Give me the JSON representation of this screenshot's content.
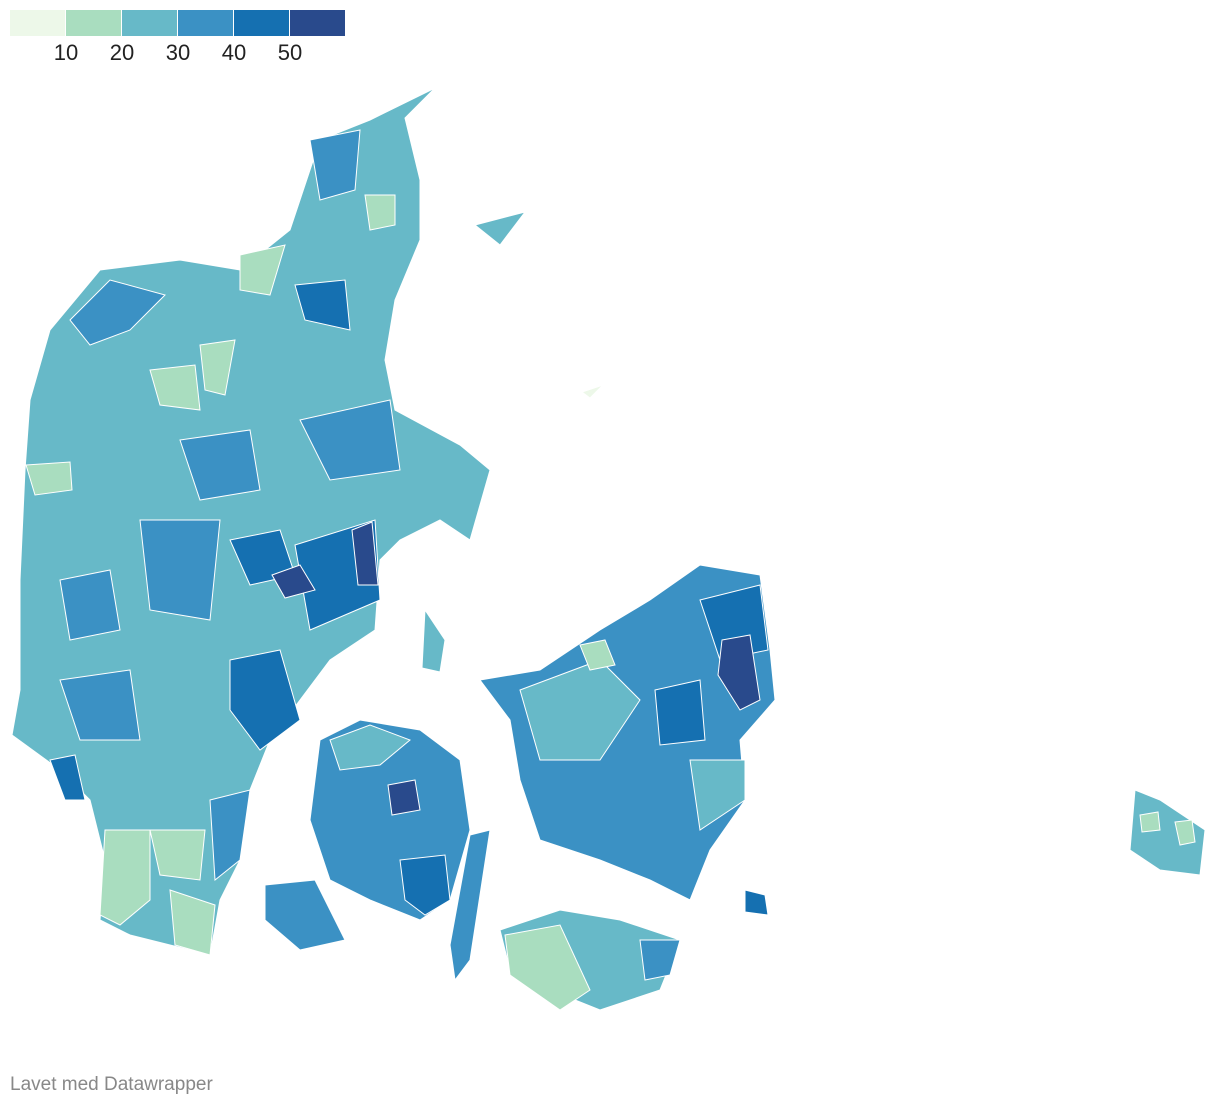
{
  "legend": {
    "colors": [
      "#edf8e9",
      "#a9ddbf",
      "#67b9c8",
      "#3b91c4",
      "#1570b1",
      "#294a8c"
    ],
    "ticks": [
      10,
      20,
      30,
      40,
      50
    ]
  },
  "footer": {
    "credit": "Lavet med Datawrapper"
  }
}
